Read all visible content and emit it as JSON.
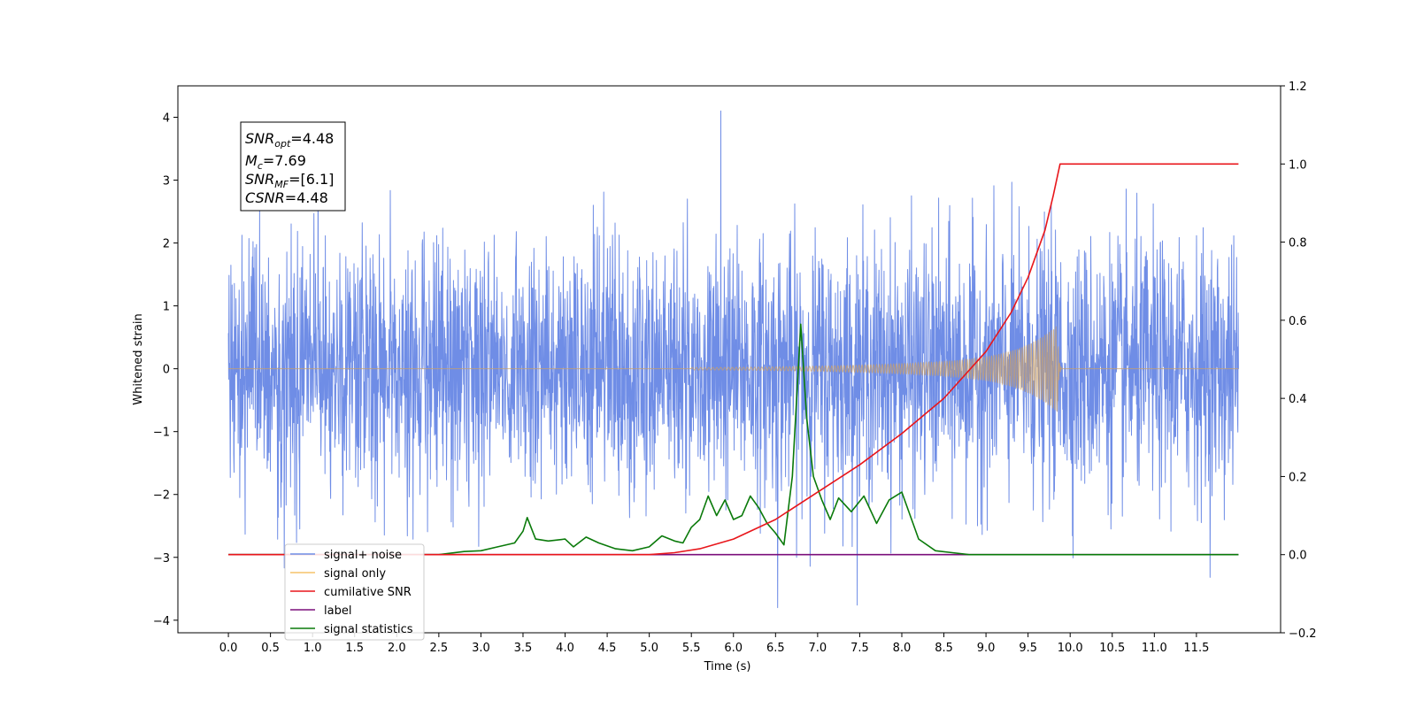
{
  "chart_data": {
    "type": "line",
    "xlabel": "Time (s)",
    "ylabel": "Whitened strain",
    "xlim": [
      -0.6,
      12.5
    ],
    "ylim": [
      -4.2,
      4.5
    ],
    "ylim_right": [
      -0.2,
      1.2
    ],
    "x_ticks": [
      "0.0",
      "0.5",
      "1.0",
      "1.5",
      "2.0",
      "2.5",
      "3.0",
      "3.5",
      "4.0",
      "4.5",
      "5.0",
      "5.5",
      "6.0",
      "6.5",
      "7.0",
      "7.5",
      "8.0",
      "8.5",
      "9.0",
      "9.5",
      "10.0",
      "10.5",
      "11.0",
      "11.5"
    ],
    "y_ticks_left": [
      "4",
      "3",
      "2",
      "1",
      "0",
      "−1",
      "−2",
      "−3",
      "−4"
    ],
    "y_ticks_right": [
      "1.2",
      "1.0",
      "0.8",
      "0.6",
      "0.4",
      "0.2",
      "0.0",
      "−0.2"
    ],
    "legend_position": "lower-left",
    "annotation": {
      "snr_opt": "=4.48",
      "mc": "=7.69",
      "snr_mf": "=[6.1]",
      "csnr": "=4.48"
    },
    "series": [
      {
        "name": "signal+ noise",
        "color": "#6f8de6",
        "axis": "left",
        "x_range": [
          0.0,
          12.0
        ],
        "noise_amplitude": 1.0,
        "peak_max": 4.1,
        "peak_min": -3.8
      },
      {
        "name": "signal only",
        "color": "#f5c36a",
        "axis": "left",
        "x_range": [
          0.0,
          12.0
        ],
        "chirp_start": 5.5,
        "chirp_merger": 9.85,
        "peak_amplitude": 0.7
      },
      {
        "name": "cumilative SNR",
        "color": "#e8161b",
        "axis": "right",
        "x": [
          0.0,
          5.0,
          5.3,
          5.6,
          6.0,
          6.5,
          7.0,
          7.5,
          8.0,
          8.5,
          9.0,
          9.3,
          9.5,
          9.7,
          9.8,
          9.88,
          12.0
        ],
        "values": [
          0.0,
          0.0,
          0.005,
          0.015,
          0.04,
          0.09,
          0.16,
          0.23,
          0.31,
          0.4,
          0.52,
          0.62,
          0.71,
          0.83,
          0.92,
          1.0,
          1.0
        ]
      },
      {
        "name": "label",
        "color": "#7b0f7b",
        "axis": "right",
        "x": [
          0.0,
          12.0
        ],
        "values": [
          0.0,
          0.0
        ]
      },
      {
        "name": "signal statistics",
        "color": "#0a7a0a",
        "axis": "right",
        "x": [
          0.0,
          2.5,
          2.8,
          3.0,
          3.2,
          3.4,
          3.5,
          3.55,
          3.65,
          3.8,
          4.0,
          4.1,
          4.25,
          4.4,
          4.6,
          4.8,
          5.0,
          5.15,
          5.3,
          5.4,
          5.5,
          5.6,
          5.7,
          5.8,
          5.9,
          6.0,
          6.1,
          6.2,
          6.3,
          6.4,
          6.5,
          6.6,
          6.7,
          6.8,
          6.87,
          6.95,
          7.05,
          7.15,
          7.25,
          7.4,
          7.55,
          7.7,
          7.85,
          8.0,
          8.2,
          8.4,
          8.6,
          8.8,
          12.0
        ],
        "values": [
          0.0,
          0.0,
          0.008,
          0.01,
          0.02,
          0.03,
          0.06,
          0.095,
          0.04,
          0.035,
          0.04,
          0.02,
          0.045,
          0.03,
          0.015,
          0.01,
          0.02,
          0.048,
          0.035,
          0.03,
          0.07,
          0.09,
          0.15,
          0.1,
          0.14,
          0.09,
          0.1,
          0.15,
          0.12,
          0.08,
          0.055,
          0.025,
          0.2,
          0.59,
          0.35,
          0.2,
          0.14,
          0.09,
          0.145,
          0.11,
          0.15,
          0.08,
          0.14,
          0.16,
          0.04,
          0.01,
          0.005,
          0.0,
          0.0
        ]
      }
    ]
  }
}
